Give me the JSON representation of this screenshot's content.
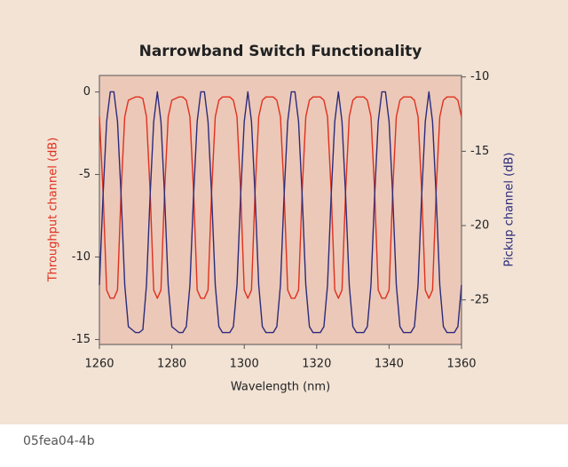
{
  "chart_data": {
    "type": "line",
    "title": "Narrowband Switch Functionality",
    "x_label": "Wavelength (nm)",
    "y_label": "Throughput channel (dB)",
    "y2_label": "Pickup channel (dB)",
    "caption": "05fea04-4b",
    "xlim": [
      1260,
      1360
    ],
    "xticks": [
      1260,
      1280,
      1300,
      1320,
      1340,
      1360
    ],
    "ylim": [
      -15.3,
      1
    ],
    "yticks": [
      0,
      -5,
      -10,
      -15
    ],
    "y2lim": [
      -28,
      -9.9
    ],
    "y2ticks": [
      -10,
      -15,
      -20,
      -25
    ],
    "x": [
      1260,
      1261,
      1262,
      1263,
      1264,
      1265,
      1266,
      1267,
      1268,
      1269,
      1270,
      1271,
      1272,
      1273,
      1274,
      1275,
      1276,
      1277,
      1278,
      1279,
      1280,
      1281,
      1282,
      1283,
      1284,
      1285,
      1286,
      1287,
      1288,
      1289,
      1290,
      1291,
      1292,
      1293,
      1294,
      1295,
      1296,
      1297,
      1298,
      1299,
      1300,
      1301,
      1302,
      1303,
      1304,
      1305,
      1306,
      1307,
      1308,
      1309,
      1310,
      1311,
      1312,
      1313,
      1314,
      1315,
      1316,
      1317,
      1318,
      1319,
      1320,
      1321,
      1322,
      1323,
      1324,
      1325,
      1326,
      1327,
      1328,
      1329,
      1330,
      1331,
      1332,
      1333,
      1334,
      1335,
      1336,
      1337,
      1338,
      1339,
      1340,
      1341,
      1342,
      1343,
      1344,
      1345,
      1346,
      1347,
      1348,
      1349,
      1350,
      1351,
      1352,
      1353,
      1354,
      1355,
      1356,
      1357,
      1358,
      1359,
      1360
    ],
    "series": [
      {
        "name": "Throughput channel",
        "color": "#e0301e",
        "axis": "y",
        "values": [
          -1.5,
          -6,
          -12,
          -12.5,
          -12.5,
          -12,
          -6,
          -1.5,
          -0.5,
          -0.4,
          -0.3,
          -0.3,
          -0.4,
          -1.5,
          -6,
          -12,
          -12.5,
          -12,
          -6,
          -1.5,
          -0.5,
          -0.4,
          -0.3,
          -0.3,
          -0.5,
          -1.5,
          -6,
          -12,
          -12.5,
          -12.5,
          -12,
          -6,
          -1.5,
          -0.5,
          -0.3,
          -0.3,
          -0.3,
          -0.5,
          -1.5,
          -6,
          -12,
          -12.5,
          -12,
          -6,
          -1.5,
          -0.5,
          -0.3,
          -0.3,
          -0.3,
          -0.5,
          -1.5,
          -6,
          -12,
          -12.5,
          -12.5,
          -12,
          -6,
          -1.5,
          -0.5,
          -0.3,
          -0.3,
          -0.3,
          -0.5,
          -1.5,
          -6,
          -12,
          -12.5,
          -12,
          -6,
          -1.5,
          -0.5,
          -0.3,
          -0.3,
          -0.3,
          -0.5,
          -1.5,
          -6,
          -12,
          -12.5,
          -12.5,
          -12,
          -6,
          -1.5,
          -0.5,
          -0.3,
          -0.3,
          -0.3,
          -0.5,
          -1.5,
          -6,
          -12,
          -12.5,
          -12,
          -6,
          -1.5,
          -0.5,
          -0.3,
          -0.3,
          -0.3,
          -0.5,
          -1.5
        ]
      },
      {
        "name": "Pickup channel",
        "color": "#2b2b7c",
        "axis": "y2",
        "values": [
          -24,
          -18,
          -13,
          -11,
          -11,
          -13,
          -18,
          -24,
          -26.8,
          -27,
          -27.2,
          -27.2,
          -27,
          -24,
          -18,
          -13,
          -11,
          -13,
          -18,
          -24,
          -26.8,
          -27,
          -27.2,
          -27.2,
          -26.8,
          -24,
          -18,
          -13,
          -11,
          -11,
          -13,
          -18,
          -24,
          -26.8,
          -27.2,
          -27.2,
          -27.2,
          -26.8,
          -24,
          -18,
          -13,
          -11,
          -13,
          -18,
          -24,
          -26.8,
          -27.2,
          -27.2,
          -27.2,
          -26.8,
          -24,
          -18,
          -13,
          -11,
          -11,
          -13,
          -18,
          -24,
          -26.8,
          -27.2,
          -27.2,
          -27.2,
          -26.8,
          -24,
          -18,
          -13,
          -11,
          -13,
          -18,
          -24,
          -26.8,
          -27.2,
          -27.2,
          -27.2,
          -26.8,
          -24,
          -18,
          -13,
          -11,
          -11,
          -13,
          -18,
          -24,
          -26.8,
          -27.2,
          -27.2,
          -27.2,
          -26.8,
          -24,
          -18,
          -13,
          -11,
          -13,
          -18,
          -24,
          -26.8,
          -27.2,
          -27.2,
          -27.2,
          -26.8,
          -24
        ]
      }
    ]
  }
}
